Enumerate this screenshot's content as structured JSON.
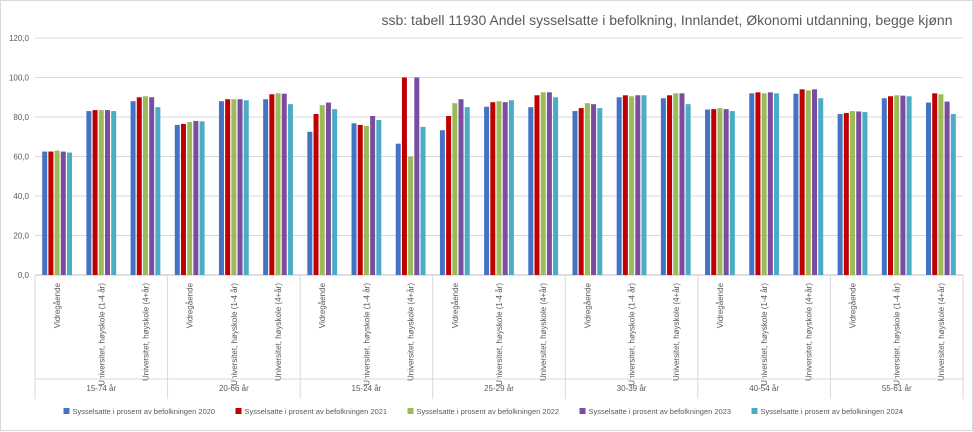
{
  "chart_data": {
    "type": "bar",
    "title": "ssb: tabell 11930 Andel sysselsatte i befolkning, Innlandet, Økonomi utdanning, begge kjønn",
    "ylim": [
      0,
      120
    ],
    "yticks": [
      "0,0",
      "20,0",
      "40,0",
      "60,0",
      "80,0",
      "100,0",
      "120,0"
    ],
    "grid": true,
    "legend_position": "bottom",
    "groups": [
      {
        "label": "15-74 år",
        "categories": [
          "Vidregående",
          "Universitet, høyskole (1-4 år)",
          "Universitet, høyskole (4+år)"
        ]
      },
      {
        "label": "20-66 år",
        "categories": [
          "Vidregående",
          "Universitet, høyskole (1-4 år)",
          "Universitet, høyskole (4+år)"
        ]
      },
      {
        "label": "15-24 år",
        "categories": [
          "Vidregående",
          "Universitet, høyskole (1-4 år)",
          "Universitet, høyskole (4+år)"
        ]
      },
      {
        "label": "25-29 år",
        "categories": [
          "Vidregående",
          "Universitet, høyskole (1-4 år)",
          "Universitet, høyskole (4+år)"
        ]
      },
      {
        "label": "30-39 år",
        "categories": [
          "Vidregående",
          "Universitet, høyskole (1-4 år)",
          "Universitet, høyskole (4+år)"
        ]
      },
      {
        "label": "40-54 år",
        "categories": [
          "Vidregående",
          "Universitet, høyskole (1-4 år)",
          "Universitet, høyskole (4+år)"
        ]
      },
      {
        "label": "55-61 år",
        "categories": [
          "Vidregående",
          "Universitet, høyskole (1-4 år)",
          "Universitet, høyskole (4+år)"
        ]
      }
    ],
    "series": [
      {
        "name": "Sysselsatte i prosent av befolkningen 2020",
        "color": "#4472C4",
        "values": [
          62.5,
          83.0,
          88.0,
          76.0,
          88.0,
          89.0,
          72.5,
          76.8,
          66.5,
          73.3,
          85.2,
          85.0,
          83.0,
          90.0,
          89.5,
          83.8,
          92.0,
          91.8,
          81.5,
          89.5,
          87.3
        ]
      },
      {
        "name": "Sysselsatte i prosent av befolkningen 2021",
        "color": "#C00000",
        "values": [
          62.5,
          83.5,
          90.0,
          76.5,
          89.0,
          91.5,
          81.5,
          76.0,
          100.0,
          80.5,
          87.5,
          91.0,
          84.5,
          91.0,
          91.0,
          84.0,
          92.5,
          94.0,
          82.0,
          90.5,
          92.0
        ]
      },
      {
        "name": "Sysselsatte i prosent av befolkningen 2022",
        "color": "#9BBB59",
        "values": [
          63.0,
          83.5,
          90.5,
          77.5,
          89.0,
          92.0,
          86.0,
          75.5,
          60.0,
          87.0,
          88.0,
          92.5,
          87.0,
          90.5,
          92.0,
          84.5,
          92.0,
          93.5,
          83.0,
          91.0,
          91.5
        ]
      },
      {
        "name": "Sysselsatte i prosent av befolkningen 2023",
        "color": "#7A4DA0",
        "values": [
          62.5,
          83.5,
          90.0,
          78.0,
          89.0,
          91.8,
          87.3,
          80.5,
          100.0,
          89.0,
          87.5,
          92.5,
          86.5,
          91.0,
          92.0,
          84.0,
          92.5,
          94.0,
          82.8,
          90.8,
          87.8
        ]
      },
      {
        "name": "Sysselsatte i prosent av befolkningen 2024",
        "color": "#4BACC6",
        "values": [
          62.0,
          83.0,
          85.0,
          77.8,
          88.5,
          86.5,
          84.0,
          78.5,
          75.0,
          85.0,
          88.5,
          90.0,
          84.5,
          91.0,
          86.5,
          83.0,
          92.0,
          89.5,
          82.5,
          90.5,
          81.5
        ]
      }
    ]
  }
}
